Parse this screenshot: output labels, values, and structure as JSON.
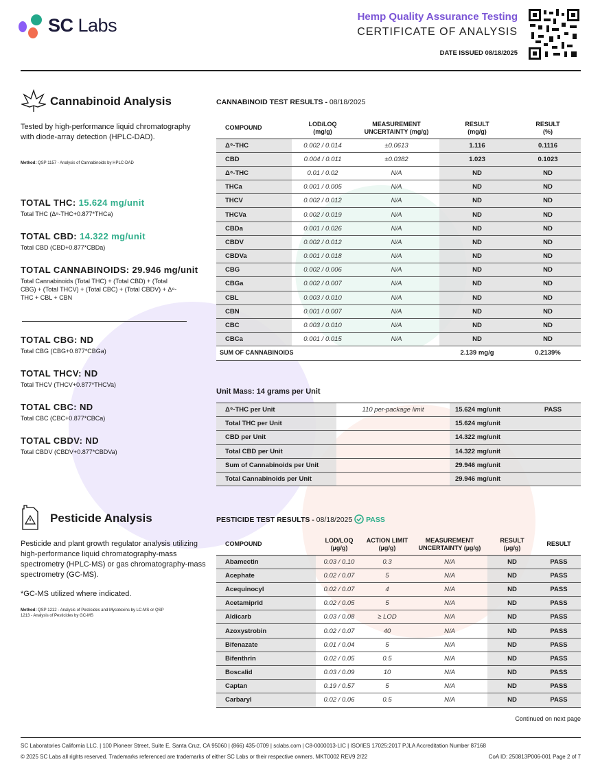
{
  "header": {
    "logo": "SC Labs",
    "subtitle": "Hemp Quality Assurance Testing",
    "title": "CERTIFICATE OF ANALYSIS",
    "date_issued": "DATE ISSUED 08/18/2025"
  },
  "colors": {
    "accent_purple": "#7b55d6",
    "accent_green": "#2fae8b",
    "logo_teal": "#23a88a",
    "logo_purple": "#8b5cf6",
    "logo_orange": "#f26d4f"
  },
  "cannabinoid": {
    "title": "Cannabinoid Analysis",
    "description": "Tested by high-performance liquid chromatography with diode-array detection (HPLC-DAD).",
    "method_label": "Method:",
    "method": "QSP 1157 - Analysis of Cannabinoids by HPLC-DAD",
    "total_thc_label": "TOTAL THC:",
    "total_thc": "15.624 mg/unit",
    "total_thc_formula": "Total THC (Δ⁹-THC+0.877*THCa)",
    "total_cbd_label": "TOTAL CBD:",
    "total_cbd": "14.322 mg/unit",
    "total_cbd_formula": "Total CBD (CBD+0.877*CBDa)",
    "total_cann": "TOTAL CANNABINOIDS: 29.946 mg/unit",
    "total_cann_formula": "Total Cannabinoids (Total THC) + (Total CBD) + (Total CBG) + (Total THCV) + (Total CBC) + (Total CBDV) + Δ⁸-THC + CBL + CBN",
    "total_cbg": "TOTAL CBG: ND",
    "total_cbg_formula": "Total CBG (CBG+0.877*CBGa)",
    "total_thcv": "TOTAL THCV: ND",
    "total_thcv_formula": "Total THCV (THCV+0.877*THCVa)",
    "total_cbc": "TOTAL CBC: ND",
    "total_cbc_formula": "Total CBC (CBC+0.877*CBCa)",
    "total_cbdv": "TOTAL CBDV: ND",
    "total_cbdv_formula": "Total CBDV (CBDV+0.877*CBDVa)",
    "results_title": "CANNABINOID TEST RESULTS -",
    "results_date": "08/18/2025",
    "columns": [
      "COMPOUND",
      "LOD/LOQ\n(mg/g)",
      "MEASUREMENT\nUNCERTAINTY (mg/g)",
      "RESULT\n(mg/g)",
      "RESULT\n(%)"
    ],
    "rows": [
      [
        "Δ⁹-THC",
        "0.002 / 0.014",
        "±0.0613",
        "1.116",
        "0.1116"
      ],
      [
        "CBD",
        "0.004 / 0.011",
        "±0.0382",
        "1.023",
        "0.1023"
      ],
      [
        "Δ⁸-THC",
        "0.01 / 0.02",
        "N/A",
        "ND",
        "ND"
      ],
      [
        "THCa",
        "0.001 / 0.005",
        "N/A",
        "ND",
        "ND"
      ],
      [
        "THCV",
        "0.002 / 0.012",
        "N/A",
        "ND",
        "ND"
      ],
      [
        "THCVa",
        "0.002 / 0.019",
        "N/A",
        "ND",
        "ND"
      ],
      [
        "CBDa",
        "0.001 / 0.026",
        "N/A",
        "ND",
        "ND"
      ],
      [
        "CBDV",
        "0.002 / 0.012",
        "N/A",
        "ND",
        "ND"
      ],
      [
        "CBDVa",
        "0.001 / 0.018",
        "N/A",
        "ND",
        "ND"
      ],
      [
        "CBG",
        "0.002 / 0.006",
        "N/A",
        "ND",
        "ND"
      ],
      [
        "CBGa",
        "0.002 / 0.007",
        "N/A",
        "ND",
        "ND"
      ],
      [
        "CBL",
        "0.003 / 0.010",
        "N/A",
        "ND",
        "ND"
      ],
      [
        "CBN",
        "0.001 / 0.007",
        "N/A",
        "ND",
        "ND"
      ],
      [
        "CBC",
        "0.003 / 0.010",
        "N/A",
        "ND",
        "ND"
      ],
      [
        "CBCa",
        "0.001 / 0.015",
        "N/A",
        "ND",
        "ND"
      ]
    ],
    "sum_row": [
      "SUM OF CANNABINOIDS",
      "",
      "",
      "2.139 mg/g",
      "0.2139%"
    ]
  },
  "unit": {
    "title": "Unit Mass: 14 grams per Unit",
    "rows": [
      [
        "Δ⁹-THC per Unit",
        "110 per-package limit",
        "15.624 mg/unit",
        "PASS"
      ],
      [
        "Total THC per Unit",
        "",
        "15.624 mg/unit",
        ""
      ],
      [
        "CBD per Unit",
        "",
        "14.322 mg/unit",
        ""
      ],
      [
        "Total CBD per Unit",
        "",
        "14.322 mg/unit",
        ""
      ],
      [
        "Sum of Cannabinoids per Unit",
        "",
        "29.946 mg/unit",
        ""
      ],
      [
        "Total Cannabinoids per Unit",
        "",
        "29.946 mg/unit",
        ""
      ]
    ]
  },
  "pesticide": {
    "title": "Pesticide Analysis",
    "description": "Pesticide and plant growth regulator analysis utilizing high-performance liquid chromatography-mass spectrometry (HPLC-MS) or gas chromatography-mass spectrometry (GC-MS).",
    "note": "*GC-MS utilized where indicated.",
    "method_label": "Method:",
    "method": "QSP 1212 - Analysis of Pesticides and Mycotoxins by LC-MS or QSP 1213 - Analysis of Pesticides by GC-MS",
    "results_title": "PESTICIDE TEST RESULTS -",
    "results_date": "08/18/2025",
    "status": "PASS",
    "columns": [
      "COMPOUND",
      "LOD/LOQ\n(µg/g)",
      "ACTION LIMIT\n(µg/g)",
      "MEASUREMENT\nUNCERTAINTY (µg/g)",
      "RESULT\n(µg/g)",
      "RESULT"
    ],
    "rows": [
      [
        "Abamectin",
        "0.03 / 0.10",
        "0.3",
        "N/A",
        "ND",
        "PASS"
      ],
      [
        "Acephate",
        "0.02 / 0.07",
        "5",
        "N/A",
        "ND",
        "PASS"
      ],
      [
        "Acequinocyl",
        "0.02 / 0.07",
        "4",
        "N/A",
        "ND",
        "PASS"
      ],
      [
        "Acetamiprid",
        "0.02 / 0.05",
        "5",
        "N/A",
        "ND",
        "PASS"
      ],
      [
        "Aldicarb",
        "0.03 / 0.08",
        "≥ LOD",
        "N/A",
        "ND",
        "PASS"
      ],
      [
        "Azoxystrobin",
        "0.02 / 0.07",
        "40",
        "N/A",
        "ND",
        "PASS"
      ],
      [
        "Bifenazate",
        "0.01 / 0.04",
        "5",
        "N/A",
        "ND",
        "PASS"
      ],
      [
        "Bifenthrin",
        "0.02 / 0.05",
        "0.5",
        "N/A",
        "ND",
        "PASS"
      ],
      [
        "Boscalid",
        "0.03 / 0.09",
        "10",
        "N/A",
        "ND",
        "PASS"
      ],
      [
        "Captan",
        "0.19 / 0.57",
        "5",
        "N/A",
        "ND",
        "PASS"
      ],
      [
        "Carbaryl",
        "0.02 / 0.06",
        "0.5",
        "N/A",
        "ND",
        "PASS"
      ]
    ],
    "continued": "Continued on next page"
  },
  "footer": {
    "line1": "SC Laboratories California LLC. | 100 Pioneer Street, Suite E, Santa Cruz, CA 95060 | (866) 435-0709 | sclabs.com | C8-0000013-LIC | ISO/IES 17025:2017 PJLA Accreditation Number 87168",
    "line2": "© 2025 SC Labs all rights reserved. Trademarks referenced are trademarks of either SC Labs or their respective owners. MKT0002 REV9 2/22",
    "coa_id": "CoA ID: 250813P006-001  Page 2 of 7"
  }
}
